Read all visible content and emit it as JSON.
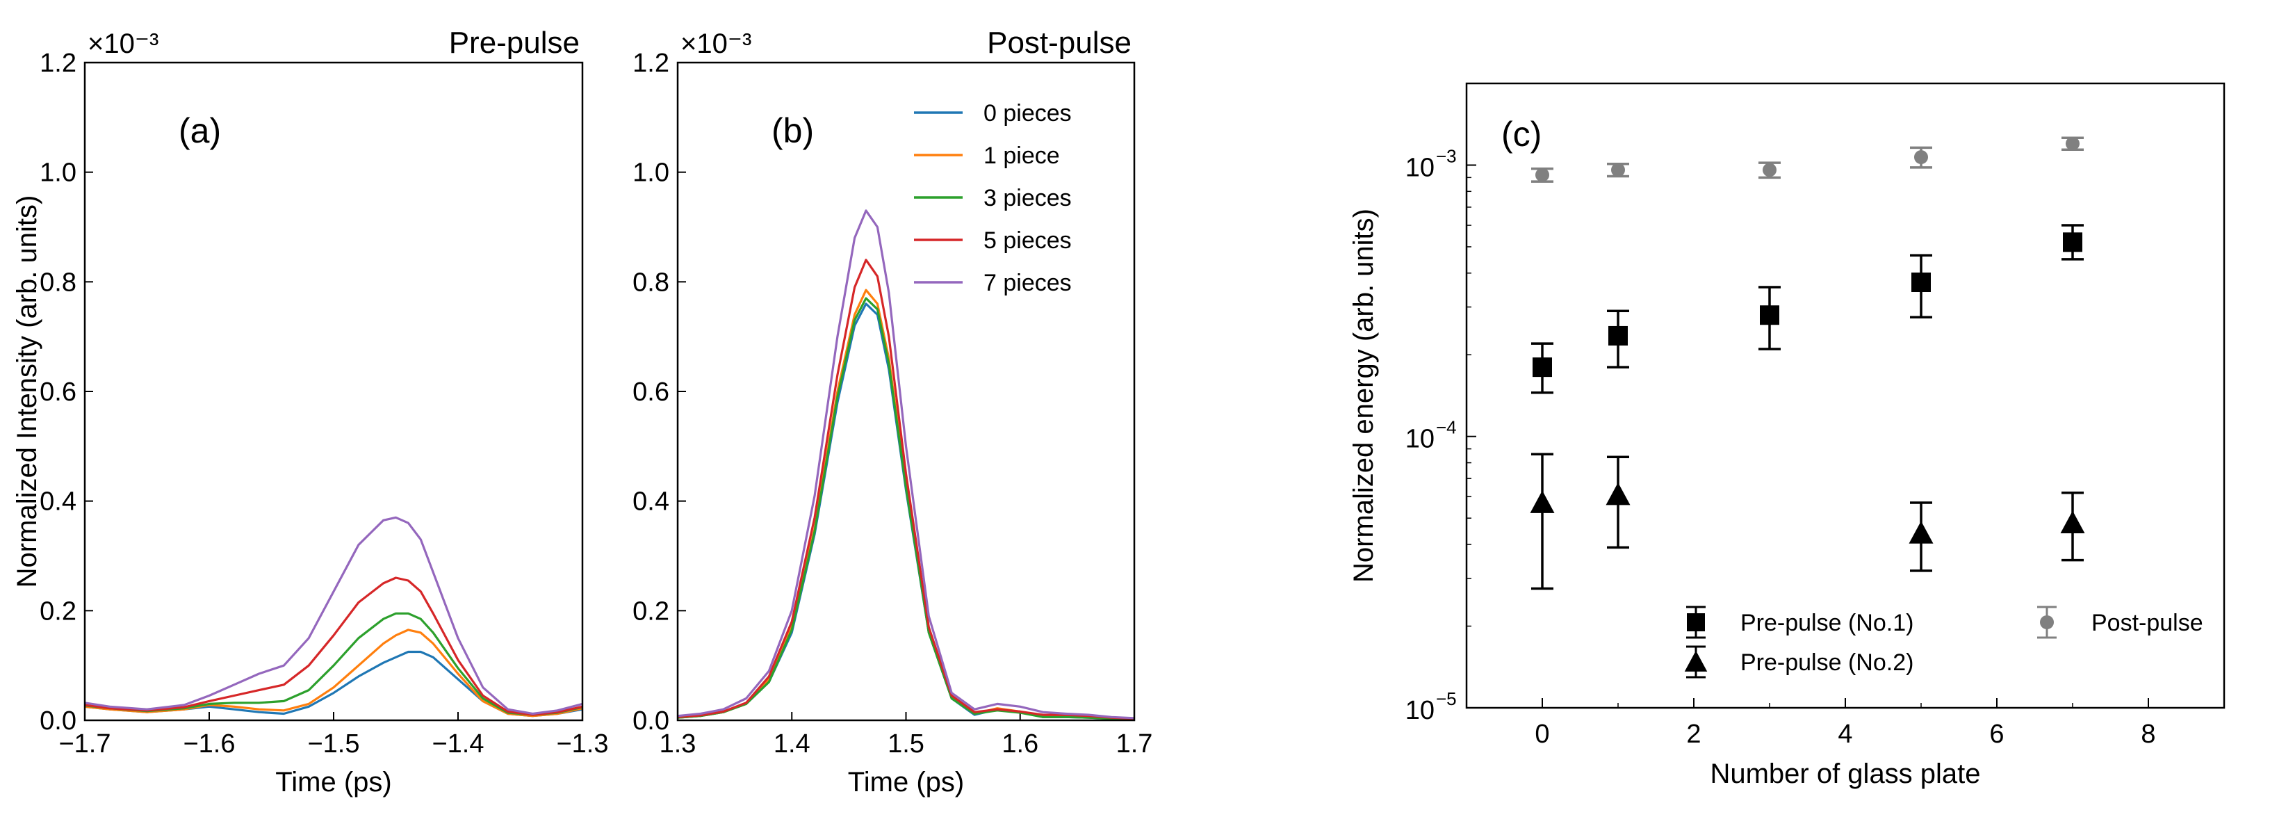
{
  "chart_data": [
    {
      "type": "line",
      "panel_label": "(a)",
      "title": "Pre-pulse",
      "xlabel": "Time (ps)",
      "ylabel": "Normalized Intensity (arb. units)",
      "y_multiplier": "×10⁻³",
      "xlim": [
        -1.7,
        -1.3
      ],
      "ylim": [
        0,
        1.2
      ],
      "x_ticks": [
        -1.7,
        -1.6,
        -1.5,
        -1.4,
        -1.3
      ],
      "x_tick_labels": [
        "−1.7",
        "−1.6",
        "−1.5",
        "−1.4",
        "−1.3"
      ],
      "y_ticks": [
        0,
        0.2,
        0.4,
        0.6,
        0.8,
        1.0,
        1.2
      ],
      "y_tick_labels": [
        "0.0",
        "0.2",
        "0.4",
        "0.6",
        "0.8",
        "1.0",
        "1.2"
      ],
      "x": [
        -1.7,
        -1.68,
        -1.65,
        -1.62,
        -1.6,
        -1.58,
        -1.56,
        -1.54,
        -1.52,
        -1.5,
        -1.48,
        -1.46,
        -1.45,
        -1.44,
        -1.43,
        -1.42,
        -1.4,
        -1.38,
        -1.36,
        -1.34,
        -1.32,
        -1.3
      ],
      "series": [
        {
          "name": "0 pieces",
          "color": "#1f77b4",
          "values": [
            0.025,
            0.02,
            0.015,
            0.02,
            0.025,
            0.02,
            0.015,
            0.012,
            0.025,
            0.05,
            0.08,
            0.105,
            0.115,
            0.125,
            0.125,
            0.115,
            0.075,
            0.035,
            0.012,
            0.008,
            0.012,
            0.02
          ]
        },
        {
          "name": "1 piece",
          "color": "#ff7f0e",
          "values": [
            0.025,
            0.02,
            0.015,
            0.02,
            0.028,
            0.025,
            0.02,
            0.018,
            0.03,
            0.06,
            0.1,
            0.14,
            0.155,
            0.165,
            0.16,
            0.14,
            0.085,
            0.035,
            0.012,
            0.008,
            0.012,
            0.022
          ]
        },
        {
          "name": "3 pieces",
          "color": "#2ca02c",
          "values": [
            0.027,
            0.022,
            0.017,
            0.022,
            0.03,
            0.032,
            0.032,
            0.035,
            0.055,
            0.1,
            0.15,
            0.185,
            0.195,
            0.195,
            0.185,
            0.16,
            0.095,
            0.04,
            0.014,
            0.01,
            0.014,
            0.024
          ]
        },
        {
          "name": "5 pieces",
          "color": "#d62728",
          "values": [
            0.028,
            0.022,
            0.018,
            0.024,
            0.035,
            0.045,
            0.055,
            0.065,
            0.1,
            0.155,
            0.215,
            0.25,
            0.26,
            0.255,
            0.235,
            0.195,
            0.11,
            0.045,
            0.016,
            0.01,
            0.015,
            0.025
          ]
        },
        {
          "name": "7 pieces",
          "color": "#9467bd",
          "values": [
            0.032,
            0.025,
            0.02,
            0.028,
            0.045,
            0.065,
            0.085,
            0.1,
            0.15,
            0.235,
            0.32,
            0.365,
            0.37,
            0.36,
            0.33,
            0.27,
            0.15,
            0.06,
            0.02,
            0.012,
            0.018,
            0.03
          ]
        }
      ]
    },
    {
      "type": "line",
      "panel_label": "(b)",
      "title": "Post-pulse",
      "xlabel": "Time (ps)",
      "ylabel": "",
      "y_multiplier": "×10⁻³",
      "xlim": [
        1.3,
        1.7
      ],
      "ylim": [
        0,
        1.2
      ],
      "x_ticks": [
        1.3,
        1.4,
        1.5,
        1.6,
        1.7
      ],
      "x_tick_labels": [
        "1.3",
        "1.4",
        "1.5",
        "1.6",
        "1.7"
      ],
      "y_ticks": [
        0,
        0.2,
        0.4,
        0.6,
        0.8,
        1.0,
        1.2
      ],
      "y_tick_labels": [
        "0.0",
        "0.2",
        "0.4",
        "0.6",
        "0.8",
        "1.0",
        "1.2"
      ],
      "legend": {
        "position": "top-right"
      },
      "x": [
        1.3,
        1.32,
        1.34,
        1.36,
        1.38,
        1.4,
        1.42,
        1.44,
        1.455,
        1.465,
        1.475,
        1.485,
        1.5,
        1.52,
        1.54,
        1.56,
        1.58,
        1.6,
        1.62,
        1.64,
        1.66,
        1.68,
        1.7
      ],
      "series": [
        {
          "name": "0 pieces",
          "color": "#1f77b4",
          "values": [
            0.005,
            0.008,
            0.015,
            0.03,
            0.07,
            0.16,
            0.34,
            0.58,
            0.72,
            0.76,
            0.74,
            0.64,
            0.42,
            0.16,
            0.04,
            0.01,
            0.02,
            0.015,
            0.006,
            0.006,
            0.005,
            0.003,
            0.002
          ]
        },
        {
          "name": "1 piece",
          "color": "#ff7f0e",
          "values": [
            0.005,
            0.008,
            0.015,
            0.03,
            0.075,
            0.17,
            0.35,
            0.6,
            0.74,
            0.785,
            0.76,
            0.66,
            0.43,
            0.165,
            0.042,
            0.012,
            0.022,
            0.016,
            0.008,
            0.007,
            0.006,
            0.004,
            0.002
          ]
        },
        {
          "name": "3 pieces",
          "color": "#2ca02c",
          "values": [
            0.005,
            0.008,
            0.015,
            0.03,
            0.07,
            0.165,
            0.345,
            0.59,
            0.73,
            0.77,
            0.75,
            0.65,
            0.425,
            0.16,
            0.04,
            0.012,
            0.018,
            0.014,
            0.006,
            0.006,
            0.005,
            0.003,
            0.002
          ]
        },
        {
          "name": "5 pieces",
          "color": "#d62728",
          "values": [
            0.006,
            0.009,
            0.016,
            0.032,
            0.08,
            0.18,
            0.37,
            0.63,
            0.79,
            0.84,
            0.81,
            0.7,
            0.45,
            0.17,
            0.045,
            0.015,
            0.02,
            0.016,
            0.01,
            0.01,
            0.008,
            0.005,
            0.003
          ]
        },
        {
          "name": "7 pieces",
          "color": "#9467bd",
          "values": [
            0.008,
            0.012,
            0.02,
            0.04,
            0.09,
            0.2,
            0.41,
            0.7,
            0.88,
            0.93,
            0.9,
            0.78,
            0.5,
            0.19,
            0.05,
            0.02,
            0.03,
            0.025,
            0.015,
            0.012,
            0.01,
            0.006,
            0.004
          ]
        }
      ]
    },
    {
      "type": "scatter",
      "panel_label": "(c)",
      "xlabel": "Number of glass plate",
      "ylabel": "Normalized energy  (arb. units)",
      "y_scale": "log",
      "xlim": [
        -1,
        9
      ],
      "ylim": [
        1e-05,
        0.002
      ],
      "x_ticks": [
        0,
        2,
        4,
        6,
        8
      ],
      "x_tick_labels": [
        "0",
        "2",
        "4",
        "6",
        "8"
      ],
      "y_ticks": [
        1e-05,
        0.0001,
        0.001
      ],
      "y_tick_labels": [
        "10",
        "10",
        "10"
      ],
      "y_tick_exponents": [
        "−5",
        "−4",
        "−3"
      ],
      "legend": {
        "position": "bottom-right"
      },
      "series": [
        {
          "name": "Pre-pulse (No.1)",
          "marker": "square",
          "color": "#000000",
          "x": [
            0,
            1,
            3,
            5,
            7
          ],
          "y": [
            0.00018,
            0.000235,
            0.00028,
            0.00037,
            0.00052
          ],
          "err_low": [
            0.000145,
            0.00018,
            0.00021,
            0.000275,
            0.00045
          ],
          "err_high": [
            0.00022,
            0.00029,
            0.000355,
            0.000465,
            0.0006
          ]
        },
        {
          "name": "Pre-pulse (No.2)",
          "marker": "triangle",
          "color": "#000000",
          "x": [
            0,
            1,
            5,
            7
          ],
          "y": [
            5.7e-05,
            6.1e-05,
            4.4e-05,
            4.8e-05
          ],
          "err_low": [
            2.75e-05,
            3.9e-05,
            3.2e-05,
            3.5e-05
          ],
          "err_high": [
            8.6e-05,
            8.4e-05,
            5.7e-05,
            6.2e-05
          ]
        },
        {
          "name": "Post-pulse",
          "marker": "circle",
          "color": "#808080",
          "x": [
            0,
            1,
            3,
            5,
            7
          ],
          "y": [
            0.00092,
            0.00096,
            0.00096,
            0.00107,
            0.0012
          ],
          "err_low": [
            0.00087,
            0.00091,
            0.0009,
            0.00098,
            0.00114
          ],
          "err_high": [
            0.00097,
            0.00101,
            0.00102,
            0.00116,
            0.00126
          ]
        }
      ]
    }
  ]
}
